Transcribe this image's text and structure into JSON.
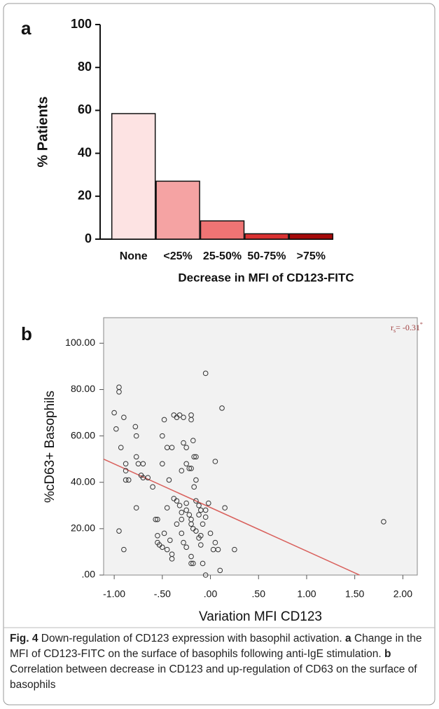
{
  "chart_data": [
    {
      "type": "bar",
      "panel": "a",
      "categories": [
        "None",
        "<25%",
        "25-50%",
        "50-75%",
        ">75%"
      ],
      "values": [
        58.5,
        27,
        8.5,
        2.5,
        2.5
      ],
      "colors": [
        "#fde3e3",
        "#f5a3a3",
        "#ef7474",
        "#d93232",
        "#a50a0a"
      ],
      "ylim": [
        0,
        100
      ],
      "yticks": [
        0,
        20,
        40,
        60,
        80,
        100
      ],
      "y_label": "% Patients",
      "x_label": "Decrease in MFI of CD123-FITC"
    },
    {
      "type": "scatter",
      "panel": "b",
      "x": [
        -0.95,
        -0.95,
        -1.0,
        -0.98,
        -0.9,
        -0.93,
        -0.88,
        -0.88,
        -0.88,
        -0.85,
        -0.95,
        -0.9,
        -0.78,
        -0.77,
        -0.77,
        -0.75,
        -0.72,
        -0.7,
        -0.7,
        -0.77,
        -0.65,
        -0.6,
        -0.57,
        -0.55,
        -0.5,
        -0.5,
        -0.48,
        -0.45,
        -0.43,
        -0.45,
        -0.4,
        -0.38,
        -0.35,
        -0.32,
        -0.28,
        -0.38,
        -0.35,
        -0.32,
        -0.3,
        -0.3,
        -0.55,
        -0.55,
        -0.53,
        -0.5,
        -0.48,
        -0.45,
        -0.42,
        -0.4,
        -0.4,
        -0.35,
        -0.3,
        -0.28,
        -0.25,
        -0.25,
        -0.22,
        -0.2,
        -0.2,
        -0.2,
        -0.18,
        -0.17,
        -0.15,
        -0.15,
        -0.17,
        -0.15,
        -0.12,
        -0.25,
        -0.22,
        -0.2,
        -0.2,
        -0.18,
        -0.15,
        -0.12,
        -0.1,
        -0.28,
        -0.25,
        -0.2,
        -0.2,
        -0.18,
        -0.08,
        -0.05,
        -0.05,
        0.05,
        -0.05,
        -0.05,
        -0.02,
        0.0,
        0.03,
        0.08,
        0.05,
        0.1,
        0.12,
        0.15,
        0.25,
        -0.08,
        -0.1,
        1.8,
        -0.3,
        -0.12,
        -0.25,
        -0.1
      ],
      "values": [
        81,
        79,
        70,
        63,
        68,
        55,
        48,
        45,
        41,
        41,
        19,
        11,
        64,
        60,
        51,
        48,
        43,
        42,
        48,
        29,
        42,
        38,
        24,
        24,
        60,
        48,
        67,
        55,
        41,
        29,
        55,
        69,
        68,
        69,
        68,
        33,
        32,
        30,
        27,
        24,
        17,
        14,
        13,
        12,
        18,
        11,
        15,
        9,
        7,
        22,
        45,
        57,
        55,
        48,
        46,
        46,
        69,
        67,
        58,
        51,
        51,
        41,
        38,
        32,
        30,
        28,
        26,
        24,
        22,
        20,
        19,
        16,
        13,
        14,
        12,
        8,
        5,
        5,
        5,
        0,
        87,
        49,
        28,
        25,
        31,
        18,
        11,
        11,
        14,
        2,
        72,
        29,
        11,
        22,
        28,
        23,
        18,
        26,
        31,
        17
      ],
      "color": "#333333",
      "trendline": {
        "x": [
          -1.11,
          1.55
        ],
        "y": [
          50,
          0
        ],
        "color": "#d9605c"
      },
      "annotation": {
        "symbol": "r",
        "subscript": "s",
        "text": "= -0.31",
        "superscript": "*"
      },
      "xlim": [
        -1.11,
        2.15
      ],
      "ylim": [
        0,
        111
      ],
      "xticks": [
        {
          "value": -1,
          "label": "-1.00"
        },
        {
          "value": -0.5,
          "label": "-.50"
        },
        {
          "value": 0,
          "label": ".00"
        },
        {
          "value": 0.5,
          "label": ".50"
        },
        {
          "value": 1,
          "label": "1.00"
        },
        {
          "value": 1.5,
          "label": "1.50"
        },
        {
          "value": 2,
          "label": "2.00"
        }
      ],
      "yticks": [
        {
          "value": 0,
          "label": ".00"
        },
        {
          "value": 20,
          "label": "20.00"
        },
        {
          "value": 40,
          "label": "40.00"
        },
        {
          "value": 60,
          "label": "60.00"
        },
        {
          "value": 80,
          "label": "80.00"
        },
        {
          "value": 100,
          "label": "100.00"
        }
      ],
      "y_label": "%cD63+ Basophils",
      "x_label": "Variation MFI CD123"
    }
  ],
  "caption": {
    "label": "Fig. 4",
    "text1": " Down-regulation of CD123 expression with basophil activation. ",
    "panel_a": "a",
    "text2": " Change in the MFI of CD123-FITC on the surface of basophils following anti-IgE stimulation. ",
    "panel_b": "b",
    "text3": " Correlation between decrease in CD123 and up-regulation of CD63 on the surface of basophils"
  }
}
